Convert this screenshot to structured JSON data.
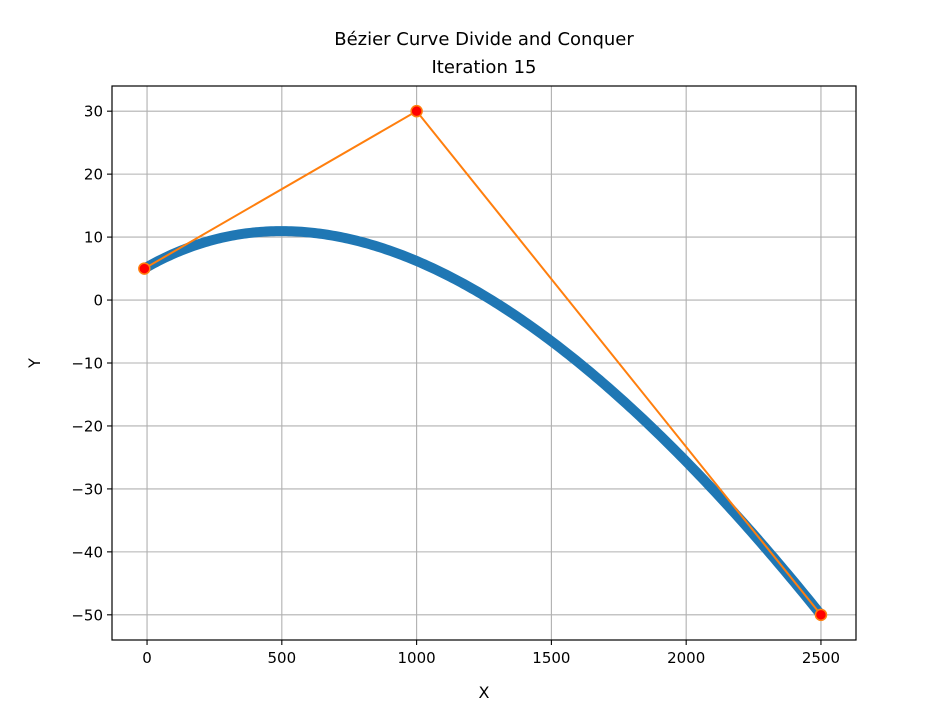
{
  "chart_data": {
    "type": "line",
    "title": "Bézier Curve Divide and Conquer",
    "subtitle": "Iteration 15",
    "xlabel": "X",
    "ylabel": "Y",
    "xlim": [
      -130,
      2630
    ],
    "ylim": [
      -54,
      34
    ],
    "xticks": [
      0,
      500,
      1000,
      1500,
      2000,
      2500
    ],
    "yticks": [
      30,
      20,
      10,
      0,
      -10,
      -20,
      -30,
      -40,
      -50
    ],
    "xtick_labels": [
      "0",
      "500",
      "1000",
      "1500",
      "2000",
      "2500"
    ],
    "ytick_labels": [
      "30",
      "20",
      "10",
      "0",
      "−10",
      "−20",
      "−30",
      "−40",
      "−50"
    ],
    "grid": true,
    "control_points": [
      {
        "x": -10,
        "y": 5
      },
      {
        "x": 1000,
        "y": 30
      },
      {
        "x": 2500,
        "y": -50
      }
    ],
    "curve": {
      "type": "quadratic-bezier",
      "p0": {
        "x": -10,
        "y": 5
      },
      "p1": {
        "x": 1000,
        "y": 30
      },
      "p2": {
        "x": 2500,
        "y": -50
      }
    },
    "colors": {
      "curve": "#1f77b4",
      "control_polygon": "#ff7f0e",
      "control_marker_face": "#ff0000",
      "control_marker_edge": "#ff7f0e",
      "grid": "#b0b0b0"
    }
  }
}
